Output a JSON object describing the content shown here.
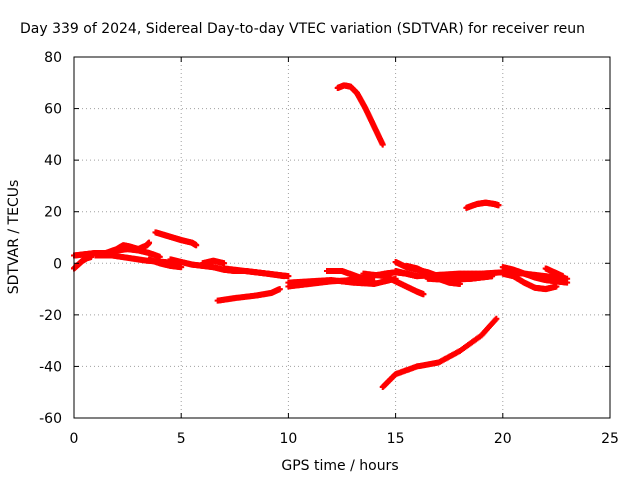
{
  "chart_data": {
    "type": "scatter",
    "title": "Day 339 of 2024, Sidereal Day-to-day VTEC variation (SDTVAR) for receiver reun",
    "xlabel": "GPS time / hours",
    "ylabel": "SDTVAR / TECUs",
    "xlim": [
      0,
      25
    ],
    "ylim": [
      -60,
      80
    ],
    "xticks": [
      0,
      5,
      10,
      15,
      20,
      25
    ],
    "yticks": [
      -60,
      -40,
      -20,
      0,
      20,
      40,
      60,
      80
    ],
    "grid": true,
    "marker_color": "#ff0000",
    "series": [
      {
        "x": [
          0.0,
          0.2,
          0.4,
          0.6,
          0.8
        ],
        "y": [
          -2.0,
          -0.5,
          1.0,
          2.0,
          2.5
        ]
      },
      {
        "x": [
          0.0,
          0.5,
          1.0,
          1.5,
          2.0,
          2.5,
          3.0,
          3.5,
          4.0
        ],
        "y": [
          3.0,
          3.5,
          4.0,
          4.0,
          5.0,
          5.5,
          5.0,
          4.0,
          2.5
        ]
      },
      {
        "x": [
          1.5,
          2.0,
          2.3,
          2.6,
          3.0,
          3.4,
          3.5
        ],
        "y": [
          4.0,
          5.5,
          7.0,
          6.5,
          5.5,
          7.0,
          8.0
        ]
      },
      {
        "x": [
          1.0,
          1.8,
          2.6,
          3.4,
          4.2,
          4.6
        ],
        "y": [
          3.0,
          3.0,
          2.0,
          1.0,
          0.5,
          0.0
        ]
      },
      {
        "x": [
          3.5,
          4.0,
          4.5,
          5.0
        ],
        "y": [
          1.5,
          0.0,
          -1.0,
          -1.5
        ]
      },
      {
        "x": [
          3.8,
          4.2,
          4.6,
          5.0,
          5.5,
          5.7
        ],
        "y": [
          12.0,
          11.0,
          10.0,
          9.0,
          8.0,
          7.0
        ]
      },
      {
        "x": [
          4.5,
          5.0,
          5.5,
          6.0,
          6.5,
          7.0,
          7.5,
          8.0,
          8.5,
          9.0,
          9.5,
          10.0
        ],
        "y": [
          1.5,
          0.5,
          -0.5,
          -1.0,
          -1.5,
          -2.5,
          -3.0,
          -3.0,
          -3.5,
          -4.0,
          -4.5,
          -5.0
        ]
      },
      {
        "x": [
          6.0,
          6.5,
          7.0
        ],
        "y": [
          0.0,
          1.0,
          0.0
        ]
      },
      {
        "x": [
          7.0,
          8.0,
          9.0,
          9.8
        ],
        "y": [
          -2.0,
          -3.0,
          -4.0,
          -5.0
        ]
      },
      {
        "x": [
          6.7,
          7.5,
          8.5,
          9.2,
          9.6
        ],
        "y": [
          -14.5,
          -13.5,
          -12.5,
          -11.5,
          -10.0
        ]
      },
      {
        "x": [
          10.0,
          11.0,
          12.0,
          13.0,
          14.0,
          15.0
        ],
        "y": [
          -7.5,
          -7.0,
          -6.5,
          -7.5,
          -8.0,
          -6.0
        ]
      },
      {
        "x": [
          10.0,
          11.0,
          12.0,
          13.0,
          14.0
        ],
        "y": [
          -9.0,
          -8.0,
          -7.0,
          -6.5,
          -7.0
        ]
      },
      {
        "x": [
          11.8,
          12.5,
          13.0,
          13.5,
          14.0
        ],
        "y": [
          -3.0,
          -3.0,
          -4.5,
          -6.0,
          -8.0
        ]
      },
      {
        "x": [
          12.5,
          13.5,
          14.5,
          15.0,
          15.5,
          16.0
        ],
        "y": [
          -7.0,
          -5.5,
          -4.0,
          -3.5,
          -4.0,
          -5.0
        ]
      },
      {
        "x": [
          13.5,
          14.5,
          15.0,
          15.5,
          16.0,
          16.3
        ],
        "y": [
          -4.0,
          -5.0,
          -7.0,
          -9.0,
          -11.0,
          -12.0
        ]
      },
      {
        "x": [
          12.3,
          12.6,
          12.9,
          13.2,
          13.6,
          14.0,
          14.4
        ],
        "y": [
          68.0,
          69.0,
          68.5,
          66.0,
          60.0,
          53.0,
          46.0
        ]
      },
      {
        "x": [
          15.0,
          15.5,
          16.0,
          17.0,
          18.0,
          19.0,
          20.0,
          21.0,
          22.0,
          23.0
        ],
        "y": [
          -3.0,
          -4.0,
          -5.0,
          -4.5,
          -4.0,
          -4.0,
          -3.5,
          -4.0,
          -5.0,
          -6.0
        ]
      },
      {
        "x": [
          15.0,
          15.5,
          16.0,
          16.5,
          17.0,
          17.5,
          18.0,
          18.5,
          19.0,
          19.5
        ],
        "y": [
          0.5,
          -1.5,
          -2.5,
          -3.5,
          -5.0,
          -5.5,
          -6.0,
          -6.0,
          -5.5,
          -5.0
        ]
      },
      {
        "x": [
          15.5,
          16.0,
          16.5,
          17.0,
          17.5,
          18.0
        ],
        "y": [
          -1.0,
          -2.0,
          -4.0,
          -6.0,
          -7.5,
          -8.0
        ]
      },
      {
        "x": [
          16.5,
          17.5,
          18.5,
          19.5
        ],
        "y": [
          -6.0,
          -6.5,
          -6.0,
          -5.0
        ]
      },
      {
        "x": [
          18.3,
          18.8,
          19.2,
          19.6,
          19.8
        ],
        "y": [
          21.5,
          23.0,
          23.5,
          23.0,
          22.5
        ]
      },
      {
        "x": [
          14.4,
          15.0,
          16.0,
          17.0,
          18.0,
          19.0,
          19.7
        ],
        "y": [
          -48.0,
          -43.0,
          -40.0,
          -38.5,
          -34.0,
          -28.0,
          -21.5
        ]
      },
      {
        "x": [
          20.0,
          20.5,
          21.0,
          21.5,
          22.0,
          22.5,
          23.0
        ],
        "y": [
          -1.5,
          -2.5,
          -4.0,
          -5.5,
          -6.5,
          -7.0,
          -7.5
        ]
      },
      {
        "x": [
          20.0,
          20.5,
          21.0,
          21.5,
          22.0,
          22.5
        ],
        "y": [
          -4.0,
          -5.0,
          -7.5,
          -9.5,
          -10.0,
          -9.0
        ]
      },
      {
        "x": [
          22.0,
          22.4,
          22.8
        ],
        "y": [
          -2.0,
          -3.5,
          -5.0
        ]
      }
    ]
  }
}
